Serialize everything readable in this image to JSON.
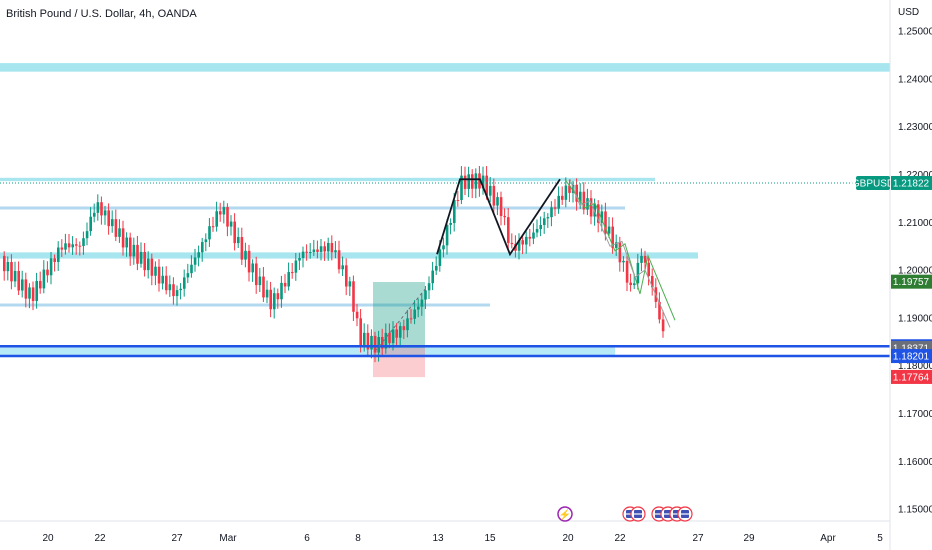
{
  "chart_data": {
    "type": "candlestick",
    "title": "British Pound / U.S. Dollar, 4h, OANDA",
    "currency": "USD",
    "symbol": "GBPUSD",
    "y_ticks": [
      "1.25000",
      "1.24000",
      "1.23000",
      "1.22000",
      "1.21000",
      "1.20000",
      "1.19000",
      "1.18000",
      "1.17000",
      "1.16000",
      "1.15000"
    ],
    "y_tick_values": [
      1.25,
      1.24,
      1.23,
      1.22,
      1.21,
      1.2,
      1.19,
      1.18,
      1.17,
      1.16,
      1.15
    ],
    "ylim": [
      1.1475,
      1.2565
    ],
    "x_ticks": [
      "20",
      "22",
      "27",
      "Mar",
      "6",
      "8",
      "13",
      "15",
      "20",
      "22",
      "27",
      "29",
      "Apr",
      "5"
    ],
    "price_labels": [
      {
        "text": "GBPUSD",
        "value": 1.21822,
        "color": "#089981",
        "kind": "symbol"
      },
      {
        "text": "1.21822",
        "value": 1.21822,
        "color": "#089981",
        "kind": "price"
      },
      {
        "text": "1.19757",
        "value": 1.19757,
        "color": "#2e7d32",
        "kind": "price"
      },
      {
        "text": "1.18406",
        "value": 1.18406,
        "color": "#1e53e5",
        "kind": "price"
      },
      {
        "text": "1.18371",
        "value": 1.18371,
        "color": "#6b6f7a",
        "kind": "price"
      },
      {
        "text": "1.18201",
        "value": 1.18201,
        "color": "#1e53e5",
        "kind": "price"
      },
      {
        "text": "1.17764",
        "value": 1.17764,
        "color": "#f23645",
        "kind": "price"
      }
    ],
    "zones": [
      {
        "from": 1.2415,
        "to": 1.2433,
        "color": "#a8e6ef"
      },
      {
        "from": 1.2186,
        "to": 1.2193,
        "color": "#a8e6ef"
      },
      {
        "from": 1.2128,
        "to": 1.2133,
        "color": "#b3d9f0"
      },
      {
        "from": 1.2024,
        "to": 1.2037,
        "color": "#a8e6ef"
      },
      {
        "from": 1.1925,
        "to": 1.193,
        "color": "#b3d9f0"
      },
      {
        "from": 1.182,
        "to": 1.1841,
        "color": "#b7e9f7"
      }
    ],
    "levels": [
      1.18406,
      1.18201
    ],
    "position": {
      "entry": 1.1837,
      "target": 1.1975,
      "stop": 1.1776
    },
    "pattern_points": [
      [
        1.2033,
        1.219
      ],
      [
        1.219,
        1.2033
      ],
      [
        1.2033,
        1.219
      ]
    ]
  }
}
